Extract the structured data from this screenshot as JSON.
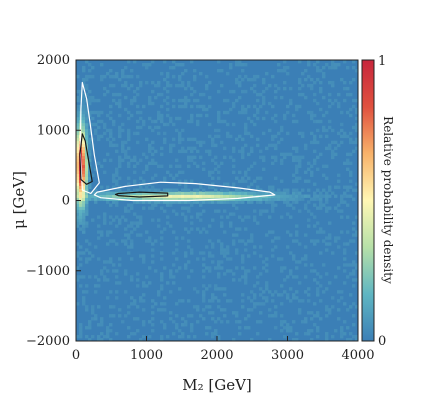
{
  "chart_data": {
    "type": "heatmap",
    "title": "",
    "xlabel": "M₂ [GeV]",
    "ylabel": "μ [GeV]",
    "xlim": [
      0,
      4000
    ],
    "ylim": [
      -2000,
      2000
    ],
    "xticks": [
      "0",
      "1000",
      "2000",
      "3000",
      "4000"
    ],
    "yticks": [
      "−2000",
      "−1000",
      "0",
      "1000",
      "2000"
    ],
    "grid": false,
    "colorbar": {
      "label": "Relative probability density",
      "min_label": "0",
      "max_label": "1",
      "range": [
        0,
        1
      ],
      "colors": [
        "#3b7fb6",
        "#5fb6c2",
        "#b6e0a8",
        "#fff7b4",
        "#f8b26a",
        "#e0513f",
        "#c7263c"
      ]
    },
    "density_regions": [
      {
        "name": "vertical-strip-high",
        "x_center": 70,
        "y_center": 500,
        "x_halfwidth": 90,
        "y_halfwidth": 600,
        "peak": 1.0
      },
      {
        "name": "horizontal-band",
        "x_center": 1500,
        "y_center": 60,
        "x_halfwidth": 1400,
        "y_halfwidth": 70,
        "peak": 0.45
      }
    ],
    "contours": [
      {
        "level": "outer",
        "color": "#ffffff",
        "points": [
          [
            90,
            1680
          ],
          [
            150,
            1450
          ],
          [
            200,
            1100
          ],
          [
            260,
            650
          ],
          [
            330,
            250
          ],
          [
            210,
            100
          ],
          [
            90,
            150
          ],
          [
            60,
            700
          ],
          [
            70,
            1300
          ]
        ]
      },
      {
        "level": "outer",
        "color": "#ffffff",
        "points": [
          [
            300,
            120
          ],
          [
            700,
            200
          ],
          [
            1200,
            260
          ],
          [
            1700,
            240
          ],
          [
            2300,
            180
          ],
          [
            2750,
            120
          ],
          [
            2820,
            80
          ],
          [
            2300,
            30
          ],
          [
            1600,
            0
          ],
          [
            800,
            0
          ],
          [
            350,
            40
          ],
          [
            260,
            80
          ]
        ]
      },
      {
        "level": "inner",
        "color": "#1a1a1a",
        "points": [
          [
            90,
            950
          ],
          [
            130,
            850
          ],
          [
            230,
            270
          ],
          [
            150,
            230
          ],
          [
            70,
            300
          ],
          [
            55,
            650
          ]
        ]
      },
      {
        "level": "inner",
        "color": "#1a1a1a",
        "points": [
          [
            600,
            100
          ],
          [
            900,
            120
          ],
          [
            1300,
            105
          ],
          [
            1300,
            65
          ],
          [
            900,
            50
          ],
          [
            600,
            70
          ],
          [
            560,
            85
          ]
        ]
      }
    ]
  }
}
